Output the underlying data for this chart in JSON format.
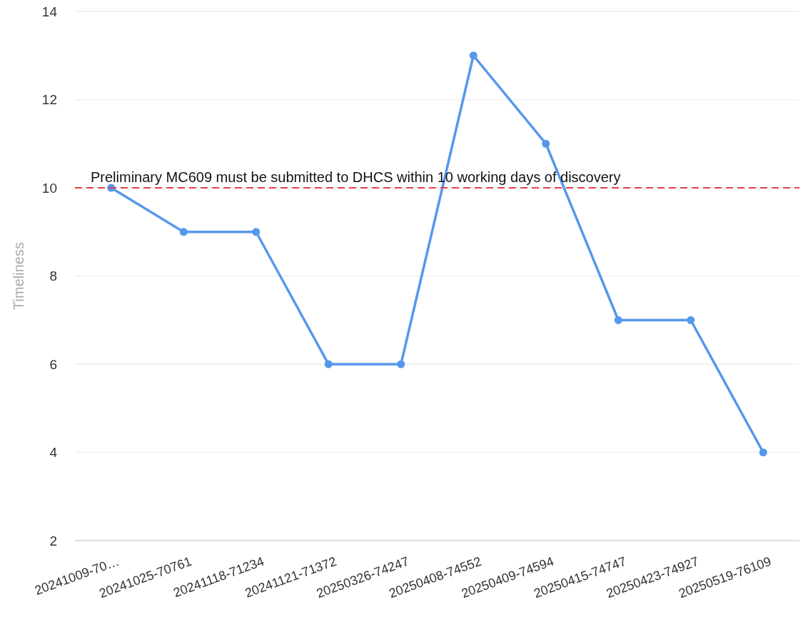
{
  "chart_data": {
    "type": "line",
    "ylabel": "Timeliness",
    "categories": [
      "20241009-70…",
      "20241025-70761",
      "20241118-71234",
      "20241121-71372",
      "20250326-74247",
      "20250408-74552",
      "20250409-74594",
      "20250415-74747",
      "20250423-74927",
      "20250519-76109"
    ],
    "series": [
      {
        "color": "#5598ec",
        "values": [
          10,
          9,
          9,
          6,
          6,
          13,
          11,
          7,
          7,
          4
        ]
      }
    ],
    "ylim": [
      2,
      14
    ],
    "yticks": [
      2,
      4,
      6,
      8,
      10,
      12,
      14
    ],
    "grid": "y",
    "marker": "circle",
    "line_style": "solid",
    "ref_lines": [
      {
        "axis": "y",
        "value": 10,
        "label": "Preliminary MC609 must be submitted to DHCS within 10 working days of discovery",
        "color": "#e0404a",
        "line_style": "dashed"
      }
    ]
  }
}
